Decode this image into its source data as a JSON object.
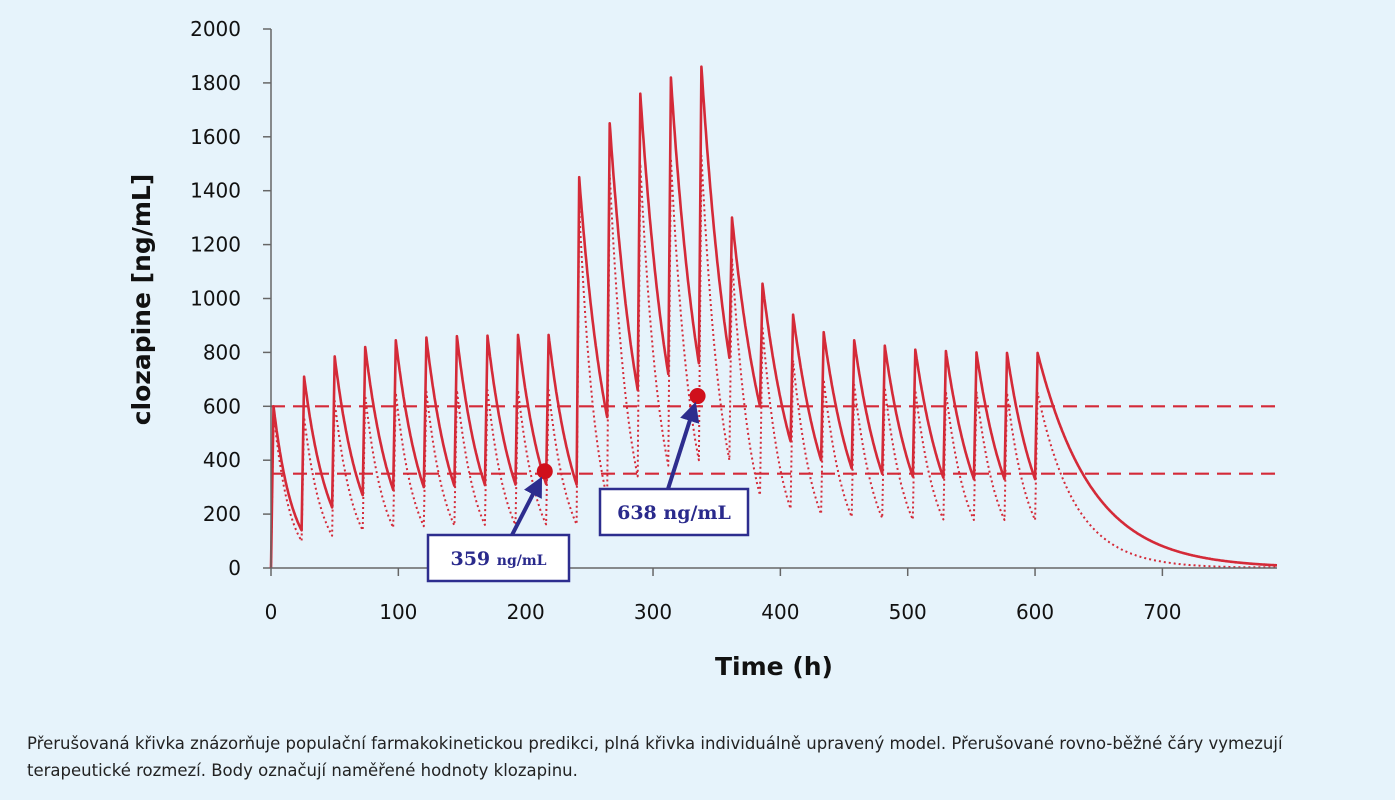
{
  "chart_data": {
    "type": "line",
    "xlabel": "Time (h)",
    "ylabel": "clozapine [ng/mL]",
    "xlim": [
      0,
      790
    ],
    "ylim": [
      0,
      2000
    ],
    "x_ticks": [
      0,
      100,
      200,
      300,
      400,
      500,
      600,
      700
    ],
    "y_ticks": [
      0,
      200,
      400,
      600,
      800,
      1000,
      1200,
      1400,
      1600,
      1800,
      2000
    ],
    "colors": {
      "line": "#d42a38",
      "point": "#d0101c",
      "callout": "#2d2d8e"
    },
    "dosing_interval_h": 24,
    "dose_times": [
      0,
      24,
      48,
      72,
      96,
      120,
      144,
      168,
      192,
      216,
      240,
      264,
      288,
      312,
      336,
      360,
      384,
      408,
      432,
      456,
      480,
      504,
      528,
      552,
      576,
      600
    ],
    "series": [
      {
        "style": "solid",
        "peaks": [
          600,
          710,
          785,
          820,
          845,
          855,
          860,
          862,
          865,
          865,
          1450,
          1650,
          1760,
          1820,
          1860,
          1300,
          1055,
          940,
          875,
          845,
          825,
          810,
          805,
          800,
          798,
          798
        ],
        "troughs": [
          140,
          225,
          270,
          290,
          300,
          305,
          308,
          310,
          312,
          310,
          560,
          660,
          720,
          760,
          780,
          600,
          470,
          400,
          370,
          350,
          340,
          335,
          330,
          330,
          330,
          330
        ],
        "tail_end": [
          790,
          10
        ]
      },
      {
        "style": "dotted",
        "peaks": [
          580,
          560,
          620,
          640,
          650,
          655,
          660,
          660,
          660,
          660,
          1340,
          1460,
          1500,
          1520,
          1530,
          1150,
          890,
          770,
          700,
          680,
          670,
          660,
          655,
          655,
          650,
          650
        ],
        "troughs": [
          100,
          120,
          140,
          150,
          155,
          158,
          160,
          160,
          162,
          162,
          260,
          340,
          380,
          400,
          400,
          270,
          220,
          200,
          190,
          185,
          180,
          180,
          178,
          178,
          178,
          178
        ],
        "tail_end": [
          760,
          3
        ]
      }
    ],
    "therapeutic_range": [
      350,
      600
    ],
    "measured_points": [
      {
        "x": 215,
        "y": 359,
        "label_value": "359",
        "label_unit": "ng/mL"
      },
      {
        "x": 335,
        "y": 638,
        "label_value": "638",
        "label_unit": "ng/mL"
      }
    ]
  },
  "caption": "Přerušovaná křivka znázorňuje populační farmakokinetickou predikci, plná křivka individuálně upravený model. Přerušované rovno-běžné čáry vymezují terapeutické rozmezí. Body označují naměřené hodnoty klozapinu."
}
